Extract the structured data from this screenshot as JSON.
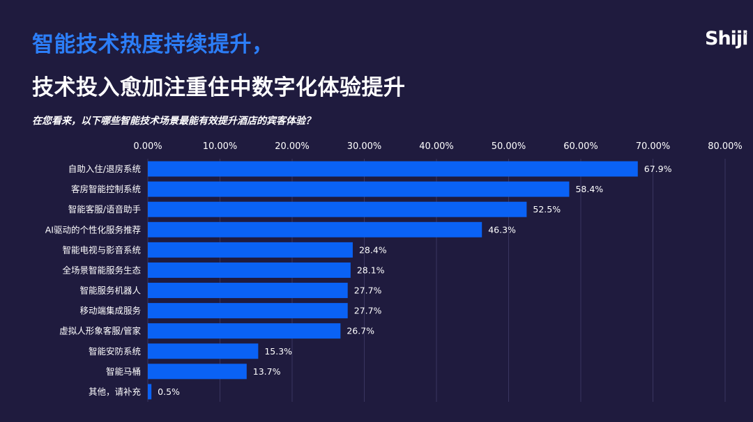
{
  "header": {
    "title_line1": "智能技术热度持续提升，",
    "title_line2": "技术投入愈加注重住中数字化体验提升",
    "question": "在您看来，以下哪些智能技术场景最能有效提升酒店的宾客体验？",
    "logo_text": "Shiji"
  },
  "colors": {
    "bar": "#0a62f5",
    "background": "#1f1b3e",
    "title_accent": "#2c7ef8",
    "grid": "#3a3660"
  },
  "chart_data": {
    "type": "bar",
    "orientation": "horizontal",
    "title": "在您看来，以下哪些智能技术场景最能有效提升酒店的宾客体验？",
    "categories": [
      "自助入住/退房系统",
      "客房智能控制系统",
      "智能客服/语音助手",
      "AI驱动的个性化服务推荐",
      "智能电视与影音系统",
      "全场景智能服务生态",
      "智能服务机器人",
      "移动端集成服务",
      "虚拟人形象客服/管家",
      "智能安防系统",
      "智能马桶",
      "其他，请补充"
    ],
    "values": [
      67.9,
      58.4,
      52.5,
      46.3,
      28.4,
      28.1,
      27.7,
      27.7,
      26.7,
      15.3,
      13.7,
      0.5
    ],
    "value_labels": [
      "67.9%",
      "58.4%",
      "52.5%",
      "46.3%",
      "28.4%",
      "28.1%",
      "27.7%",
      "27.7%",
      "26.7%",
      "15.3%",
      "13.7%",
      "0.5%"
    ],
    "x_ticks": [
      0,
      10,
      20,
      30,
      40,
      50,
      60,
      70,
      80
    ],
    "x_tick_labels": [
      "0.00%",
      "10.00%",
      "20.00%",
      "30.00%",
      "40.00%",
      "50.00%",
      "60.00%",
      "70.00%",
      "80.00%"
    ],
    "xlim": [
      0,
      80
    ],
    "axis_position": "top",
    "grid": true
  }
}
